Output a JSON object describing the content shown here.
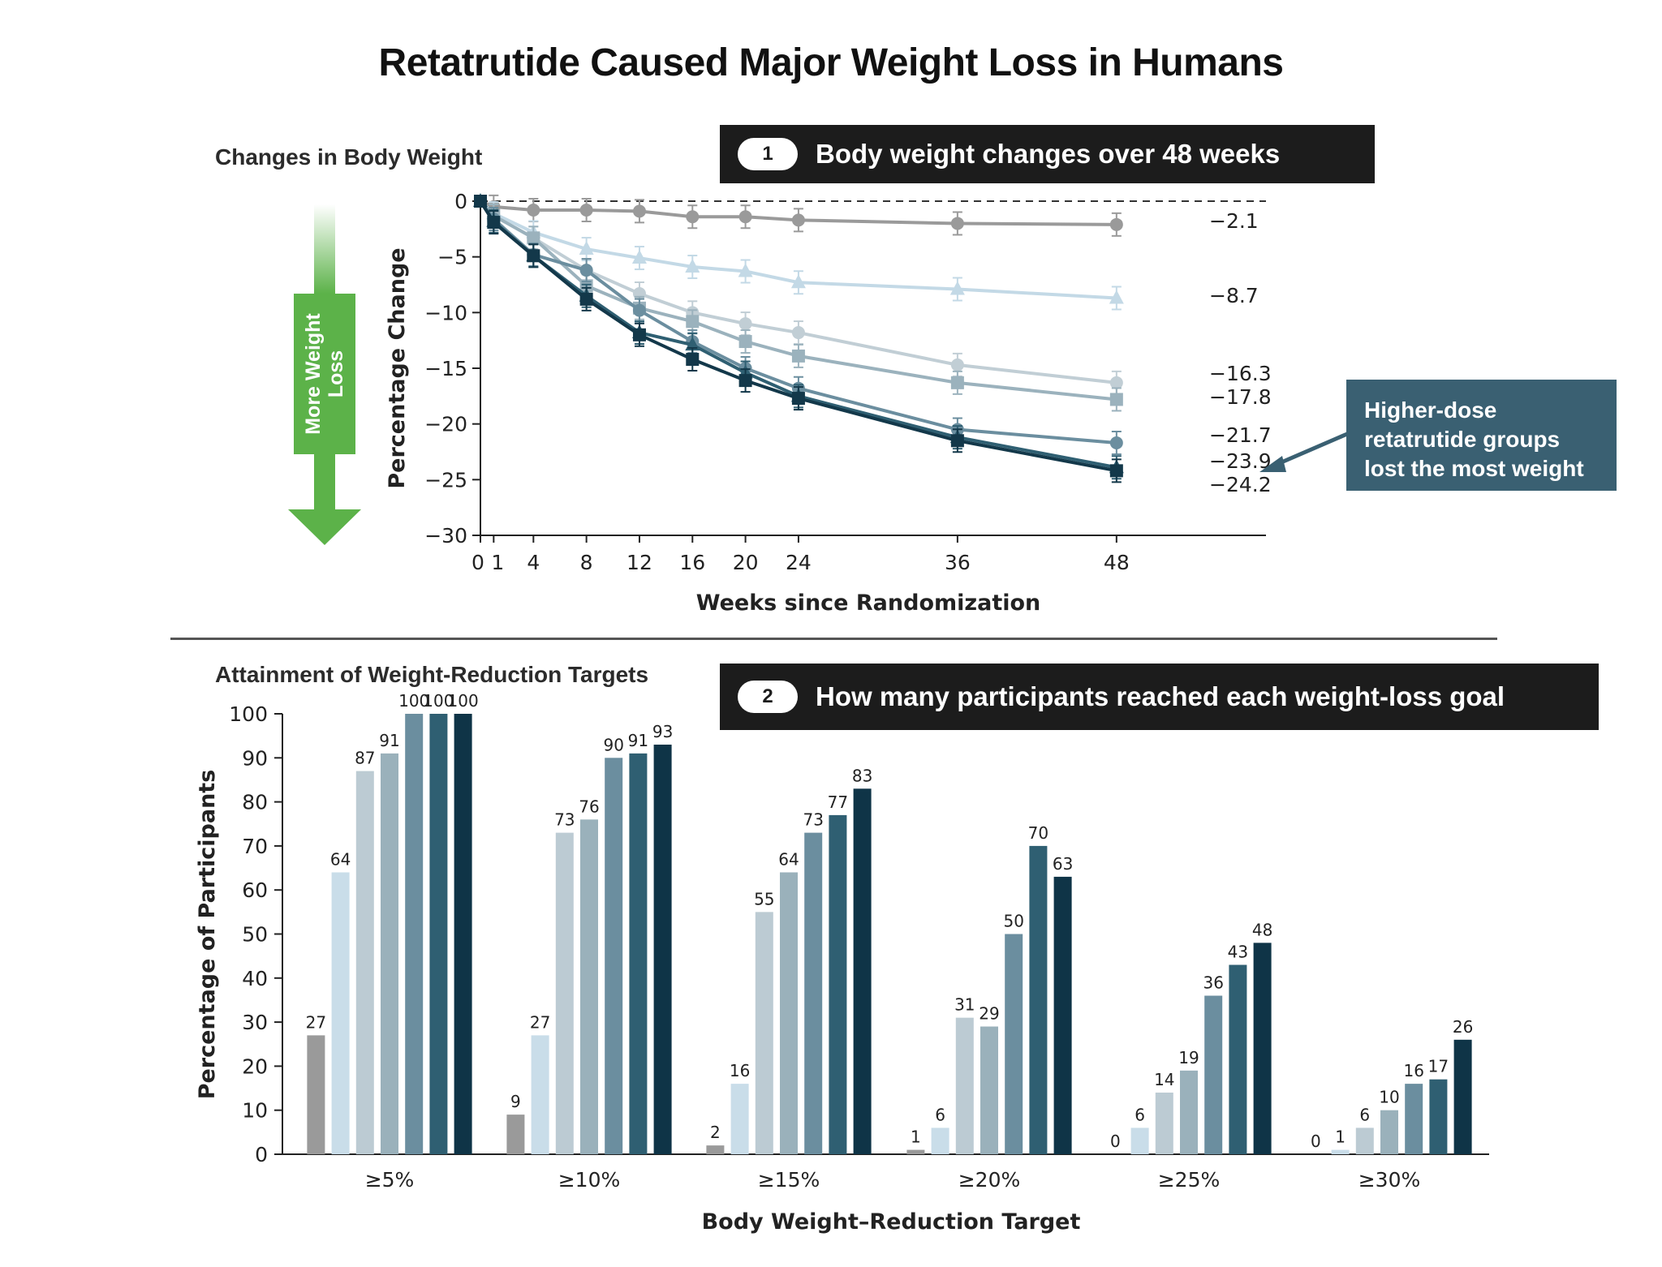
{
  "page": {
    "title": "Retatrutide Caused Major Weight Loss in Humans",
    "panel1_subtitle": "Changes in Body Weight",
    "panel2_subtitle": "Attainment of Weight-Reduction Targets",
    "banner1_number": "1",
    "banner1_text": "Body weight changes over 48 weeks",
    "banner2_number": "2",
    "banner2_text": "How many participants reached each weight-loss goal",
    "arrow_label": "More Weight\nLoss",
    "callout_text": "Higher-dose\nretatrutide groups\nlost the most weight",
    "colors": {
      "arrow_green": "#5cb249",
      "callout_bg": "#3a6072",
      "banner_bg": "#1c1c1c"
    }
  },
  "chart_data": [
    {
      "type": "line",
      "xlabel": "Weeks since Randomization",
      "ylabel": "Percentage Change",
      "xlim": [
        0,
        52
      ],
      "ylim": [
        -30,
        0
      ],
      "xticks": [
        0,
        1,
        4,
        8,
        12,
        16,
        20,
        24,
        36,
        48
      ],
      "yticks": [
        0,
        -5,
        -10,
        -15,
        -20,
        -25,
        -30
      ],
      "zero_reference_line": "dashed",
      "x": [
        0,
        1,
        4,
        8,
        12,
        16,
        20,
        24,
        36,
        48
      ],
      "series": [
        {
          "color": "#9a9a9a",
          "marker": "circle",
          "end_label": "−2.1",
          "values": [
            0,
            -0.5,
            -0.8,
            -0.8,
            -0.9,
            -1.4,
            -1.4,
            -1.7,
            -2.0,
            -2.1
          ]
        },
        {
          "color": "#c3d9e6",
          "marker": "triangle",
          "end_label": "−8.7",
          "values": [
            0,
            -1.1,
            -2.8,
            -4.3,
            -5.1,
            -5.9,
            -6.3,
            -7.3,
            -7.9,
            -8.7
          ]
        },
        {
          "color": "#c1ced5",
          "marker": "circle",
          "end_label": "−16.3",
          "values": [
            0,
            -1.3,
            -3.3,
            -6.2,
            -8.3,
            -10.0,
            -11.0,
            -11.8,
            -14.7,
            -16.3
          ]
        },
        {
          "color": "#9bb2bd",
          "marker": "square",
          "end_label": "−17.8",
          "values": [
            0,
            -1.3,
            -3.3,
            -7.6,
            -9.6,
            -10.8,
            -12.6,
            -13.9,
            -16.3,
            -17.8
          ]
        },
        {
          "color": "#6b8e9f",
          "marker": "circle",
          "end_label": "−21.7",
          "values": [
            0,
            -1.6,
            -4.8,
            -6.2,
            -9.8,
            -12.6,
            -15.0,
            -16.8,
            -20.5,
            -21.7
          ]
        },
        {
          "color": "#2f5f72",
          "marker": "triangle",
          "end_label": "−23.9",
          "values": [
            0,
            -1.8,
            -4.9,
            -8.5,
            -11.8,
            -12.9,
            -15.4,
            -17.5,
            -21.2,
            -23.9
          ]
        },
        {
          "color": "#13384a",
          "marker": "square",
          "end_label": "−24.2",
          "values": [
            0,
            -1.9,
            -4.9,
            -8.8,
            -12.0,
            -14.2,
            -16.1,
            -17.7,
            -21.5,
            -24.2
          ]
        }
      ]
    },
    {
      "type": "bar",
      "xlabel": "Body Weight–Reduction Target",
      "ylabel": "Percentage of Participants",
      "ylim": [
        0,
        100
      ],
      "yticks": [
        0,
        10,
        20,
        30,
        40,
        50,
        60,
        70,
        80,
        90,
        100
      ],
      "categories": [
        "≥5%",
        "≥10%",
        "≥15%",
        "≥20%",
        "≥25%",
        "≥30%"
      ],
      "series_colors": [
        "#9a9a9a",
        "#c9dde9",
        "#bccbd3",
        "#9ab1bb",
        "#6b8e9f",
        "#2f5f72",
        "#0f3447"
      ],
      "series": [
        {
          "values": [
            27,
            9,
            2,
            1,
            0,
            0
          ]
        },
        {
          "values": [
            64,
            27,
            16,
            6,
            6,
            1
          ]
        },
        {
          "values": [
            87,
            73,
            55,
            31,
            14,
            6
          ]
        },
        {
          "values": [
            91,
            76,
            64,
            29,
            19,
            10
          ]
        },
        {
          "values": [
            100,
            90,
            73,
            50,
            36,
            16
          ]
        },
        {
          "values": [
            100,
            91,
            77,
            70,
            43,
            17
          ]
        },
        {
          "values": [
            100,
            93,
            83,
            63,
            48,
            26
          ]
        }
      ]
    }
  ]
}
